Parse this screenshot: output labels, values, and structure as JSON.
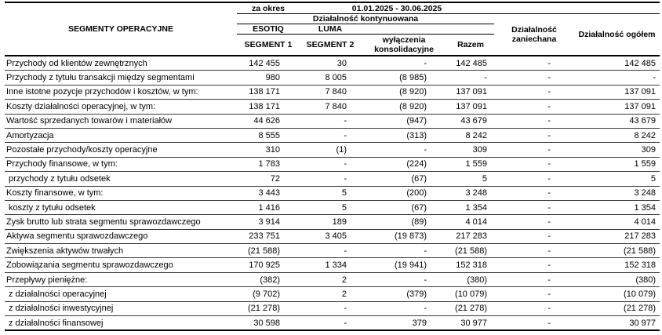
{
  "header": {
    "col_label": "SEGMENTY OPERACYJNE",
    "period_label": "za okres",
    "period_value": "01.01.2025 - 30.06.2025",
    "continued_label": "Działalność kontynuowana",
    "brand_segment1": "ESOTIQ",
    "brand_segment2": "LUMA",
    "col_segment1": "SEGMENT 1",
    "col_segment2": "SEGMENT 2",
    "col_eliminations": "wyłączenia konsolidacyjne",
    "col_total": "Razem",
    "col_discontinued": "Działalność zaniechana",
    "col_overall": "Działalność ogółem"
  },
  "rows": [
    {
      "label": "Przychody od klientów zewnętrznych",
      "indent": false,
      "values": [
        "142 455",
        "30",
        "-",
        "142 485",
        "-",
        "142 485"
      ]
    },
    {
      "label": "Przychody z tytułu transakcji między segmentami",
      "indent": false,
      "values": [
        "980",
        "8 005",
        "(8 985)",
        "-",
        "-",
        "-"
      ]
    },
    {
      "label": "Inne istotne pozycje przychodów i kosztów, w tym:",
      "indent": false,
      "values": [
        "138 171",
        "7 840",
        "(8 920)",
        "137 091",
        "-",
        "137 091"
      ]
    },
    {
      "label": "Koszty działalności operacyjnej, w tym:",
      "indent": false,
      "values": [
        "138 171",
        "7 840",
        "(8 920)",
        "137 091",
        "-",
        "137 091"
      ]
    },
    {
      "label": "Wartość sprzedanych towarów i materiałów",
      "indent": false,
      "values": [
        "44 626",
        "-",
        "(947)",
        "43 679",
        "-",
        "43 679"
      ]
    },
    {
      "label": "Amortyzacja",
      "indent": false,
      "values": [
        "8 555",
        "-",
        "(313)",
        "8 242",
        "-",
        "8 242"
      ]
    },
    {
      "label": "Pozostałe przychody/koszty operacyjne",
      "indent": false,
      "values": [
        "310",
        "(1)",
        "-",
        "309",
        "-",
        "309"
      ]
    },
    {
      "label": "Przychody finansowe, w tym:",
      "indent": false,
      "values": [
        "1 783",
        "-",
        "(224)",
        "1 559",
        "-",
        "1 559"
      ]
    },
    {
      "label": "przychody z tytułu odsetek",
      "indent": true,
      "values": [
        "72",
        "-",
        "(67)",
        "5",
        "-",
        "5"
      ]
    },
    {
      "label": "Koszty finansowe, w tym:",
      "indent": false,
      "values": [
        "3 443",
        "5",
        "(200)",
        "3 248",
        "-",
        "3 248"
      ]
    },
    {
      "label": "koszty z tytułu odsetek",
      "indent": true,
      "values": [
        "1 416",
        "5",
        "(67)",
        "1 354",
        "-",
        "1 354"
      ]
    },
    {
      "label": "Zysk brutto lub strata segmentu sprawozdawczego",
      "indent": false,
      "values": [
        "3 914",
        "189",
        "(89)",
        "4 014",
        "-",
        "4 014"
      ]
    },
    {
      "label": "Aktywa segmentu sprawozdawczego",
      "indent": false,
      "values": [
        "233 751",
        "3 405",
        "(19 873)",
        "217 283",
        "-",
        "217 283"
      ]
    },
    {
      "label": "Zwiększenia aktywów trwałych",
      "indent": false,
      "values": [
        "(21 588)",
        "-",
        "-",
        "(21 588)",
        "-",
        "(21 588)"
      ]
    },
    {
      "label": "Zobowiązania segmentu sprawozdawczego",
      "indent": false,
      "values": [
        "170 925",
        "1 334",
        "(19 941)",
        "152 318",
        "-",
        "152 318"
      ]
    },
    {
      "label": "Przepływy pieniężne:",
      "indent": false,
      "values": [
        "(382)",
        "2",
        "-",
        "(380)",
        "-",
        "(380)"
      ]
    },
    {
      "label": "z działalności operacyjnej",
      "indent": true,
      "values": [
        "(9 702)",
        "2",
        "(379)",
        "(10 079)",
        "-",
        "(10 079)"
      ]
    },
    {
      "label": "z działalności inwestycyjnej",
      "indent": true,
      "values": [
        "(21 278)",
        "-",
        "-",
        "(21 278)",
        "-",
        "(21 278)"
      ]
    },
    {
      "label": "z działalności finansowej",
      "indent": true,
      "values": [
        "30 598",
        "-",
        "379",
        "30 977",
        "-",
        "30 977"
      ]
    }
  ]
}
